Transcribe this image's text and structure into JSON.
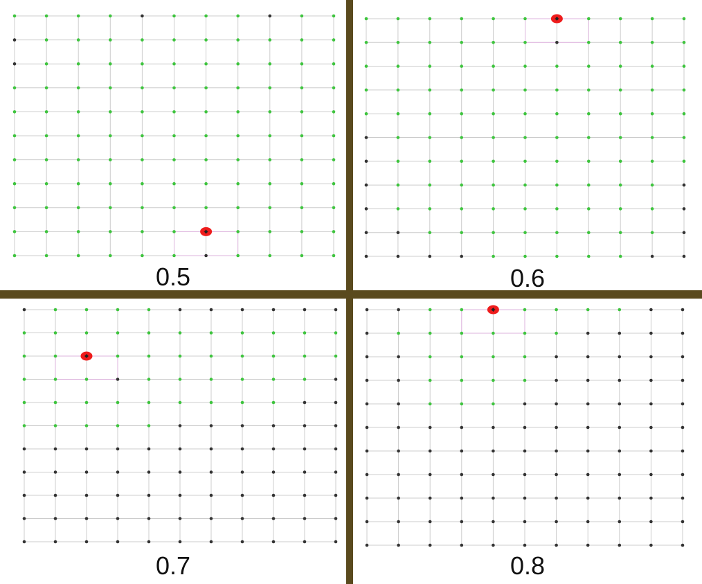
{
  "colors": {
    "background": "#5a4a1e",
    "grid_line": "#cccccc",
    "active_node": "#3ec43e",
    "inactive_node": "#333333",
    "agent_marker": "#ee1c1c",
    "agent_center": "#222222",
    "highlight": "#ee99ee"
  },
  "icons": {
    "agent": "red-dot-marker"
  },
  "panels": [
    {
      "label": "0.5",
      "active_cols_per_row": [
        [
          0,
          1,
          2,
          3,
          5,
          6,
          7,
          9,
          10
        ],
        [
          1,
          2,
          3,
          4,
          5,
          6,
          7,
          8,
          9,
          10
        ],
        [
          1,
          2,
          3,
          4,
          5,
          6,
          7,
          8,
          9,
          10
        ],
        [
          0,
          1,
          2,
          3,
          4,
          5,
          6,
          7,
          8,
          9,
          10
        ],
        [
          0,
          1,
          2,
          3,
          4,
          5,
          6,
          7,
          8,
          9,
          10
        ],
        [
          0,
          1,
          2,
          3,
          4,
          5,
          6,
          7,
          8,
          9,
          10
        ],
        [
          0,
          1,
          2,
          3,
          4,
          5,
          6,
          7,
          8,
          9,
          10
        ],
        [
          0,
          1,
          2,
          3,
          4,
          5,
          6,
          7,
          8,
          9,
          10
        ],
        [
          0,
          1,
          2,
          3,
          4,
          5,
          6,
          7,
          8,
          9,
          10
        ],
        [
          0,
          1,
          2,
          3,
          4,
          5,
          6,
          7,
          8,
          9,
          10
        ],
        [
          0,
          1,
          2,
          3,
          4,
          5,
          7,
          8,
          9,
          10
        ]
      ],
      "agent": {
        "row": 9,
        "col": 6
      }
    },
    {
      "label": "0.6",
      "active_cols_per_row": [
        [
          0,
          1,
          2,
          3,
          4,
          5,
          7,
          8,
          9,
          10
        ],
        [
          0,
          1,
          2,
          3,
          4,
          5,
          7,
          8,
          9,
          10
        ],
        [
          0,
          1,
          2,
          3,
          4,
          5,
          6,
          7,
          8,
          9,
          10
        ],
        [
          0,
          1,
          2,
          3,
          4,
          5,
          6,
          7,
          8,
          9,
          10
        ],
        [
          0,
          1,
          2,
          3,
          4,
          5,
          6,
          7,
          8,
          9,
          10
        ],
        [
          1,
          2,
          3,
          4,
          5,
          6,
          7,
          8,
          9,
          10
        ],
        [
          1,
          2,
          3,
          4,
          5,
          6,
          7,
          8,
          9,
          10
        ],
        [
          1,
          2,
          3,
          4,
          5,
          6,
          7,
          8,
          9
        ],
        [
          1,
          2,
          3,
          4,
          5,
          6,
          7,
          8,
          9
        ],
        [
          2,
          3,
          4,
          5,
          6,
          7,
          8,
          9
        ],
        [
          4,
          5,
          6,
          7,
          8
        ]
      ],
      "agent": {
        "row": 0,
        "col": 6
      }
    },
    {
      "label": "0.7",
      "active_cols_per_row": [
        [
          1,
          2,
          3,
          4
        ],
        [
          0,
          1,
          2,
          3,
          4,
          5,
          6,
          7,
          8,
          9,
          10
        ],
        [
          0,
          1,
          2,
          3,
          4,
          5,
          6,
          7,
          8,
          9,
          10
        ],
        [
          0,
          1,
          2,
          4,
          5,
          6,
          7,
          8,
          9
        ],
        [
          0,
          1,
          2,
          3,
          4,
          5,
          6,
          7,
          8
        ],
        [
          0,
          1,
          2,
          3,
          4
        ],
        [],
        [],
        [],
        [],
        []
      ],
      "agent": {
        "row": 2,
        "col": 2
      }
    },
    {
      "label": "0.8",
      "active_cols_per_row": [
        [
          2,
          3,
          4,
          5,
          6,
          7,
          8
        ],
        [
          1,
          2,
          3,
          4,
          5,
          6
        ],
        [
          2,
          3,
          4,
          5
        ],
        [
          2,
          3,
          4,
          5
        ],
        [
          2,
          3,
          4
        ],
        [],
        [],
        [],
        [],
        [],
        []
      ],
      "agent": {
        "row": 0,
        "col": 4
      }
    }
  ]
}
